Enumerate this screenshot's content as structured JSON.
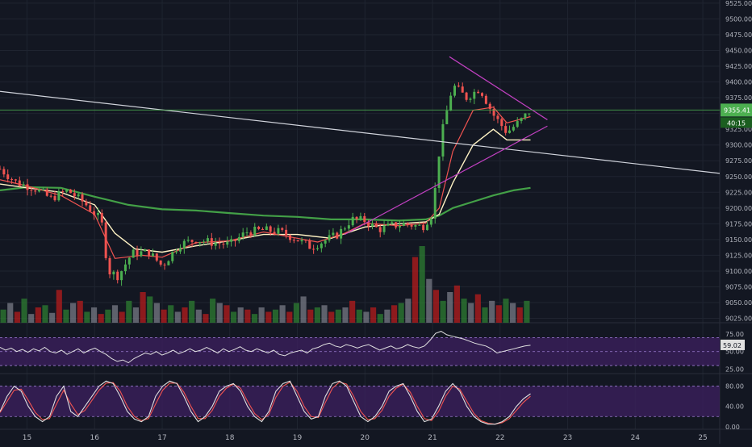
{
  "colors": {
    "background": "#131722",
    "grid": "#1f2430",
    "axis_text": "#b2b5be",
    "up": "#26a69a",
    "up_candle": "#4caf50",
    "down_candle": "#ef5350",
    "vol_up": "#2e7d32",
    "vol_down": "#b71c1c",
    "vol_neutral": "#787b86",
    "ma_fast": "#ef5350",
    "ma_mid": "#fff3c4",
    "ma_slow": "#43a047",
    "trendline": "#d1d4dc",
    "triangle": "#c040c0",
    "price_label_bg": "#4caf50",
    "indicator_band": "#3b1f5c",
    "rsi_line": "#e0e0e0",
    "stoch_k": "#e0e0e0",
    "stoch_d": "#ef5350"
  },
  "chart_data": [
    {
      "type": "candlestick",
      "title": "",
      "x_ticks": [
        "15",
        "16",
        "17",
        "18",
        "19",
        "20",
        "21",
        "22",
        "23",
        "24",
        "25"
      ],
      "y_ticks": [
        "9525.00",
        "9500.00",
        "9475.00",
        "9450.00",
        "9425.00",
        "9400.00",
        "9375.00",
        "9350.00",
        "9325.00",
        "9300.00",
        "9275.00",
        "9250.00",
        "9225.00",
        "9200.00",
        "9175.00",
        "9150.00",
        "9125.00",
        "9100.00",
        "9075.00",
        "9050.00",
        "9025.00"
      ],
      "ylim": [
        9018,
        9530
      ],
      "xlim": [
        14.6,
        25.25
      ],
      "last_price_label": "9355.41",
      "countdown_label": "40:15",
      "last_price": 9355.41,
      "close_series": [
        [
          14.6,
          9262
        ],
        [
          14.85,
          9240
        ],
        [
          15.1,
          9232
        ],
        [
          15.35,
          9215
        ],
        [
          15.6,
          9228
        ],
        [
          15.85,
          9208
        ],
        [
          16.1,
          9180
        ],
        [
          16.2,
          9100
        ],
        [
          16.35,
          9092
        ],
        [
          16.55,
          9128
        ],
        [
          16.8,
          9130
        ],
        [
          17.0,
          9108
        ],
        [
          17.25,
          9142
        ],
        [
          17.5,
          9150
        ],
        [
          17.75,
          9145
        ],
        [
          18.0,
          9142
        ],
        [
          18.25,
          9162
        ],
        [
          18.5,
          9165
        ],
        [
          18.75,
          9162
        ],
        [
          19.0,
          9150
        ],
        [
          19.2,
          9138
        ],
        [
          19.4,
          9148
        ],
        [
          19.6,
          9158
        ],
        [
          19.8,
          9182
        ],
        [
          20.0,
          9180
        ],
        [
          20.2,
          9166
        ],
        [
          20.4,
          9172
        ],
        [
          20.6,
          9175
        ],
        [
          20.85,
          9170
        ],
        [
          21.0,
          9192
        ],
        [
          21.12,
          9310
        ],
        [
          21.3,
          9395
        ],
        [
          21.5,
          9375
        ],
        [
          21.7,
          9390
        ],
        [
          21.9,
          9348
        ],
        [
          22.1,
          9320
        ],
        [
          22.3,
          9338
        ],
        [
          22.45,
          9355.41
        ]
      ],
      "ma_fast": [
        [
          14.6,
          9245
        ],
        [
          15.0,
          9235
        ],
        [
          15.5,
          9220
        ],
        [
          16.0,
          9190
        ],
        [
          16.3,
          9120
        ],
        [
          16.7,
          9125
        ],
        [
          17.0,
          9122
        ],
        [
          17.5,
          9145
        ],
        [
          18.0,
          9148
        ],
        [
          18.5,
          9162
        ],
        [
          19.0,
          9152
        ],
        [
          19.3,
          9146
        ],
        [
          19.7,
          9160
        ],
        [
          20.0,
          9176
        ],
        [
          20.5,
          9172
        ],
        [
          20.9,
          9176
        ],
        [
          21.1,
          9200
        ],
        [
          21.3,
          9290
        ],
        [
          21.6,
          9355
        ],
        [
          21.9,
          9360
        ],
        [
          22.1,
          9335
        ],
        [
          22.45,
          9345
        ]
      ],
      "ma_mid": [
        [
          14.6,
          9238
        ],
        [
          15.0,
          9232
        ],
        [
          15.5,
          9225
        ],
        [
          16.0,
          9205
        ],
        [
          16.3,
          9160
        ],
        [
          16.6,
          9135
        ],
        [
          17.0,
          9130
        ],
        [
          17.5,
          9140
        ],
        [
          18.0,
          9148
        ],
        [
          18.5,
          9158
        ],
        [
          19.0,
          9158
        ],
        [
          19.5,
          9152
        ],
        [
          20.0,
          9170
        ],
        [
          20.5,
          9175
        ],
        [
          20.9,
          9178
        ],
        [
          21.1,
          9190
        ],
        [
          21.3,
          9240
        ],
        [
          21.6,
          9300
        ],
        [
          21.9,
          9325
        ],
        [
          22.1,
          9308
        ],
        [
          22.45,
          9308
        ]
      ],
      "ma_slow": [
        [
          14.6,
          9228
        ],
        [
          15.0,
          9233
        ],
        [
          15.5,
          9232
        ],
        [
          16.0,
          9218
        ],
        [
          16.5,
          9205
        ],
        [
          17.0,
          9198
        ],
        [
          17.5,
          9196
        ],
        [
          18.0,
          9192
        ],
        [
          18.5,
          9188
        ],
        [
          19.0,
          9186
        ],
        [
          19.5,
          9182
        ],
        [
          20.0,
          9182
        ],
        [
          20.5,
          9180
        ],
        [
          20.9,
          9182
        ],
        [
          21.1,
          9188
        ],
        [
          21.3,
          9200
        ],
        [
          21.6,
          9210
        ],
        [
          21.9,
          9220
        ],
        [
          22.2,
          9228
        ],
        [
          22.45,
          9232
        ]
      ],
      "trendline": [
        [
          14.6,
          9385
        ],
        [
          25.25,
          9255
        ]
      ],
      "triangle_upper": [
        [
          21.25,
          9440
        ],
        [
          22.7,
          9340
        ]
      ],
      "triangle_lower": [
        [
          19.7,
          9158
        ],
        [
          22.7,
          9330
        ]
      ],
      "volume": [
        12,
        18,
        10,
        22,
        8,
        14,
        16,
        9,
        30,
        12,
        18,
        20,
        10,
        14,
        8,
        12,
        16,
        10,
        20,
        14,
        28,
        24,
        18,
        12,
        16,
        10,
        14,
        20,
        12,
        8,
        22,
        18,
        16,
        10,
        14,
        12,
        8,
        14,
        10,
        12,
        16,
        10,
        18,
        24,
        12,
        14,
        16,
        10,
        12,
        14,
        20,
        12,
        10,
        14,
        8,
        12,
        16,
        18,
        22,
        60,
        70,
        40,
        30,
        20,
        28,
        34,
        22,
        18,
        26,
        14,
        20,
        16,
        22,
        18,
        14,
        20
      ]
    },
    {
      "type": "line",
      "title": "",
      "y_ticks": [
        "75.00",
        "50.00",
        "25.00"
      ],
      "ylim": [
        22,
        82
      ],
      "last_value_label": "59.02",
      "values": [
        56,
        52,
        55,
        50,
        53,
        49,
        54,
        51,
        56,
        50,
        48,
        52,
        46,
        50,
        54,
        48,
        52,
        55,
        50,
        46,
        40,
        36,
        38,
        34,
        40,
        44,
        48,
        46,
        50,
        45,
        48,
        52,
        47,
        50,
        54,
        50,
        52,
        56,
        52,
        48,
        54,
        50,
        53,
        57,
        52,
        50,
        54,
        51,
        48,
        52,
        46,
        44,
        48,
        50,
        52,
        48,
        54,
        56,
        60,
        62,
        58,
        56,
        60,
        58,
        55,
        58,
        60,
        56,
        52,
        55,
        58,
        54,
        56,
        60,
        57,
        55,
        58,
        66,
        76,
        79,
        74,
        72,
        70,
        68,
        65,
        62,
        60,
        58,
        54,
        48,
        50,
        52,
        54,
        56,
        58,
        59
      ]
    },
    {
      "type": "line",
      "title": "",
      "y_ticks": [
        "80.00",
        "40.00",
        "0.00"
      ],
      "ylim": [
        -5,
        100
      ],
      "k_values": [
        30,
        60,
        80,
        70,
        40,
        20,
        10,
        20,
        60,
        80,
        30,
        20,
        40,
        60,
        80,
        90,
        85,
        60,
        30,
        15,
        10,
        20,
        60,
        80,
        90,
        85,
        60,
        30,
        10,
        20,
        40,
        70,
        80,
        85,
        70,
        40,
        20,
        10,
        30,
        70,
        85,
        90,
        60,
        30,
        15,
        20,
        60,
        85,
        90,
        80,
        50,
        20,
        10,
        20,
        40,
        70,
        80,
        85,
        60,
        30,
        10,
        15,
        40,
        70,
        85,
        70,
        40,
        20,
        10,
        5,
        5,
        10,
        20,
        40,
        55,
        65
      ],
      "d_values": [
        28,
        50,
        72,
        74,
        52,
        28,
        14,
        16,
        45,
        72,
        45,
        24,
        32,
        52,
        72,
        86,
        87,
        70,
        40,
        20,
        12,
        16,
        45,
        72,
        86,
        86,
        68,
        40,
        16,
        16,
        32,
        60,
        76,
        84,
        76,
        50,
        26,
        14,
        24,
        58,
        80,
        88,
        70,
        40,
        20,
        18,
        48,
        76,
        88,
        84,
        60,
        30,
        14,
        16,
        32,
        60,
        76,
        84,
        68,
        40,
        16,
        12,
        30,
        60,
        80,
        74,
        50,
        26,
        12,
        7,
        5,
        8,
        16,
        32,
        48,
        60
      ]
    }
  ]
}
